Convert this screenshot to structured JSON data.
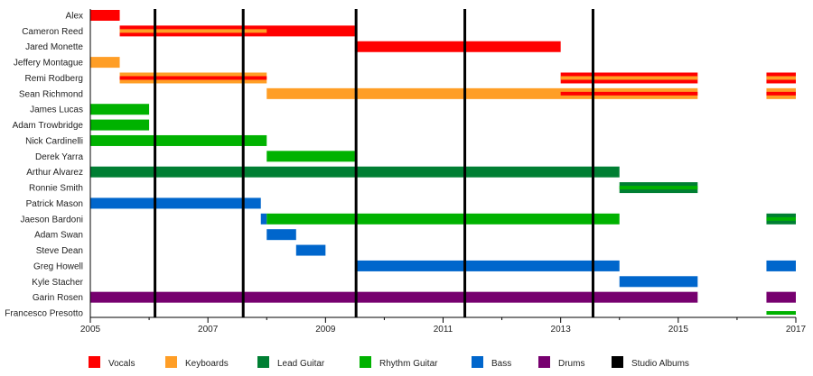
{
  "chart_data": {
    "type": "timeline",
    "xlim": [
      2005,
      2017
    ],
    "x_tick_labels": [
      "2005",
      "2007",
      "2009",
      "2011",
      "2013",
      "2015",
      "2017"
    ],
    "members": [
      "Alex",
      "Cameron Reed",
      "Jared Monette",
      "Jeffery Montague",
      "Remi Rodberg",
      "Sean Richmond",
      "James Lucas",
      "Adam Trowbridge",
      "Nick Cardinelli",
      "Derek Yarra",
      "Arthur Alvarez",
      "Ronnie Smith",
      "Patrick Mason",
      "Jaeson Bardoni",
      "Adam Swan",
      "Steve Dean",
      "Greg Howell",
      "Kyle Stacher",
      "Garin Rosen",
      "Francesco Presotto"
    ],
    "roles": [
      {
        "key": "vocals",
        "name": "Vocals",
        "color": "#ff0000"
      },
      {
        "key": "keyboards",
        "name": "Keyboards",
        "color": "#ff9e26"
      },
      {
        "key": "lead",
        "name": "Lead Guitar",
        "color": "#007f33"
      },
      {
        "key": "rhythm",
        "name": "Rhythm Guitar",
        "color": "#00b200"
      },
      {
        "key": "bass",
        "name": "Bass",
        "color": "#0066cc"
      },
      {
        "key": "drums",
        "name": "Drums",
        "color": "#77006f"
      },
      {
        "key": "albums",
        "name": "Studio Albums",
        "color": "#000000"
      }
    ],
    "bars": [
      {
        "member": "Alex",
        "start": 2005.0,
        "end": 2005.5,
        "role": "vocals"
      },
      {
        "member": "Cameron Reed",
        "start": 2005.5,
        "end": 2009.5,
        "role": "vocals"
      },
      {
        "member": "Cameron Reed",
        "start": 2005.5,
        "end": 2008.0,
        "role": "keyboards",
        "stripe": true
      },
      {
        "member": "Jared Monette",
        "start": 2009.5,
        "end": 2013.0,
        "role": "vocals"
      },
      {
        "member": "Jeffery Montague",
        "start": 2005.0,
        "end": 2005.5,
        "role": "keyboards"
      },
      {
        "member": "Remi Rodberg",
        "start": 2005.5,
        "end": 2008.0,
        "role": "keyboards",
        "stripe_role": "vocals"
      },
      {
        "member": "Remi Rodberg",
        "start": 2013.0,
        "end": 2015.33,
        "role": "vocals",
        "stripe_role": "keyboards"
      },
      {
        "member": "Remi Rodberg",
        "start": 2016.5,
        "end": 2017.0,
        "role": "vocals",
        "stripe_role": "keyboards"
      },
      {
        "member": "Sean Richmond",
        "start": 2008.0,
        "end": 2015.33,
        "role": "keyboards"
      },
      {
        "member": "Sean Richmond",
        "start": 2013.0,
        "end": 2015.33,
        "role": "vocals",
        "stripe": true
      },
      {
        "member": "Sean Richmond",
        "start": 2016.5,
        "end": 2017.0,
        "role": "keyboards",
        "stripe_role": "vocals"
      },
      {
        "member": "James Lucas",
        "start": 2005.0,
        "end": 2006.0,
        "role": "rhythm"
      },
      {
        "member": "Adam Trowbridge",
        "start": 2005.0,
        "end": 2006.0,
        "role": "rhythm"
      },
      {
        "member": "Nick Cardinelli",
        "start": 2005.0,
        "end": 2008.0,
        "role": "rhythm"
      },
      {
        "member": "Derek Yarra",
        "start": 2008.0,
        "end": 2009.5,
        "role": "rhythm"
      },
      {
        "member": "Arthur Alvarez",
        "start": 2005.0,
        "end": 2014.0,
        "role": "lead"
      },
      {
        "member": "Ronnie Smith",
        "start": 2014.0,
        "end": 2015.33,
        "role": "lead",
        "stripe_role": "rhythm"
      },
      {
        "member": "Patrick Mason",
        "start": 2005.0,
        "end": 2007.9,
        "role": "bass"
      },
      {
        "member": "Jaeson Bardoni",
        "start": 2007.9,
        "end": 2008.0,
        "role": "bass"
      },
      {
        "member": "Jaeson Bardoni",
        "start": 2008.0,
        "end": 2014.0,
        "role": "rhythm"
      },
      {
        "member": "Jaeson Bardoni",
        "start": 2016.5,
        "end": 2017.0,
        "role": "lead",
        "stripe_role": "rhythm"
      },
      {
        "member": "Adam Swan",
        "start": 2008.0,
        "end": 2008.5,
        "role": "bass"
      },
      {
        "member": "Steve Dean",
        "start": 2008.5,
        "end": 2009.0,
        "role": "bass"
      },
      {
        "member": "Greg Howell",
        "start": 2009.5,
        "end": 2014.0,
        "role": "bass"
      },
      {
        "member": "Greg Howell",
        "start": 2016.5,
        "end": 2017.0,
        "role": "bass"
      },
      {
        "member": "Kyle Stacher",
        "start": 2014.0,
        "end": 2015.33,
        "role": "bass"
      },
      {
        "member": "Garin Rosen",
        "start": 2005.0,
        "end": 2015.33,
        "role": "drums"
      },
      {
        "member": "Garin Rosen",
        "start": 2016.5,
        "end": 2017.0,
        "role": "drums"
      },
      {
        "member": "Francesco Presotto",
        "start": 2016.5,
        "end": 2017.0,
        "role": "rhythm",
        "thin": true
      }
    ],
    "studio_albums": [
      2006.1,
      2007.6,
      2009.52,
      2011.37,
      2013.55
    ]
  }
}
